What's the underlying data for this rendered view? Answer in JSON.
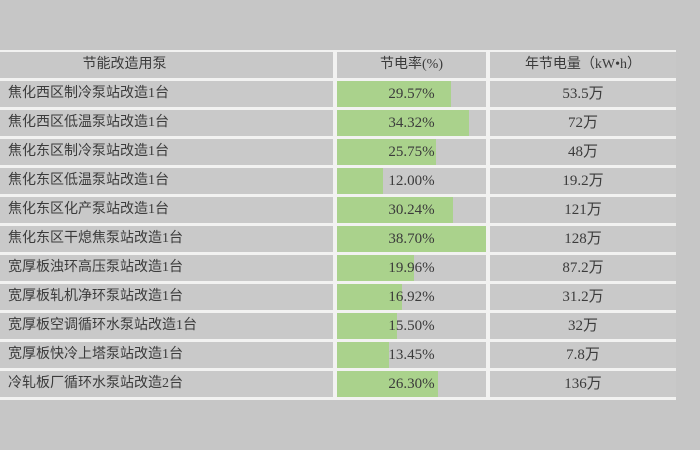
{
  "page": {
    "background_color": "#c6c6c6",
    "gridline_color": "#f2f2f1",
    "text_color": "#3b3b3b"
  },
  "table": {
    "columns": [
      {
        "label": "节能改造用泵"
      },
      {
        "label": "节电率(%)"
      },
      {
        "label": "年节电量（kW•h）"
      }
    ],
    "databar_color": "#aad28c",
    "databar_scale_max_percent": 38.7,
    "rows": [
      {
        "pump": "焦化西区制冷泵站改造1台",
        "rate": "29.57%",
        "bar_pct": 76.4,
        "annual": "53.5万"
      },
      {
        "pump": "焦化西区低温泵站改造1台",
        "rate": "34.32%",
        "bar_pct": 88.7,
        "annual": "72万"
      },
      {
        "pump": "焦化东区制冷泵站改造1台",
        "rate": "25.75%",
        "bar_pct": 66.5,
        "annual": "48万"
      },
      {
        "pump": "焦化东区低温泵站改造1台",
        "rate": "12.00%",
        "bar_pct": 31.0,
        "annual": "19.2万"
      },
      {
        "pump": "焦化东区化产泵站改造1台",
        "rate": "30.24%",
        "bar_pct": 78.1,
        "annual": "121万"
      },
      {
        "pump": "焦化东区干熄焦泵站改造1台",
        "rate": "38.70%",
        "bar_pct": 100.0,
        "annual": "128万"
      },
      {
        "pump": "宽厚板浊环高压泵站改造1台",
        "rate": "19.96%",
        "bar_pct": 51.6,
        "annual": "87.2万"
      },
      {
        "pump": "宽厚板轧机净环泵站改造1台",
        "rate": "16.92%",
        "bar_pct": 43.7,
        "annual": "31.2万"
      },
      {
        "pump": "宽厚板空调循环水泵站改造1台",
        "rate": "15.50%",
        "bar_pct": 40.1,
        "annual": "32万"
      },
      {
        "pump": "宽厚板快冷上塔泵站改造1台",
        "rate": "13.45%",
        "bar_pct": 34.8,
        "annual": "7.8万"
      },
      {
        "pump": "冷轧板厂循环水泵站改造2台",
        "rate": "26.30%",
        "bar_pct": 68.0,
        "annual": "136万"
      }
    ]
  },
  "chart_data": {
    "type": "table",
    "title": "",
    "columns": [
      "节能改造用泵",
      "节电率(%)",
      "年节电量（kW•h）"
    ],
    "rows": [
      [
        "焦化西区制冷泵站改造1台",
        "29.57%",
        "53.5万"
      ],
      [
        "焦化西区低温泵站改造1台",
        "34.32%",
        "72万"
      ],
      [
        "焦化东区制冷泵站改造1台",
        "25.75%",
        "48万"
      ],
      [
        "焦化东区低温泵站改造1台",
        "12.00%",
        "19.2万"
      ],
      [
        "焦化东区化产泵站改造1台",
        "30.24%",
        "121万"
      ],
      [
        "焦化东区干熄焦泵站改造1台",
        "38.70%",
        "128万"
      ],
      [
        "宽厚板浊环高压泵站改造1台",
        "19.96%",
        "87.2万"
      ],
      [
        "宽厚板轧机净环泵站改造1台",
        "16.92%",
        "31.2万"
      ],
      [
        "宽厚板空调循环水泵站改造1台",
        "15.50%",
        "32万"
      ],
      [
        "宽厚板快冷上塔泵站改造1台",
        "13.45%",
        "7.8万"
      ],
      [
        "冷轧板厂循环水泵站改造2台",
        "26.30%",
        "136万"
      ]
    ],
    "savings_rate_percent": [
      29.57,
      34.32,
      25.75,
      12.0,
      30.24,
      38.7,
      19.96,
      16.92,
      15.5,
      13.45,
      26.3
    ],
    "annual_savings_10k_kwh": [
      53.5,
      72,
      48,
      19.2,
      121,
      128,
      87.2,
      31.2,
      32,
      7.8,
      136
    ],
    "embedded_databars": {
      "column": "节电率(%)",
      "scale_min": 0,
      "scale_max": 38.7,
      "color": "#aad28c"
    }
  }
}
